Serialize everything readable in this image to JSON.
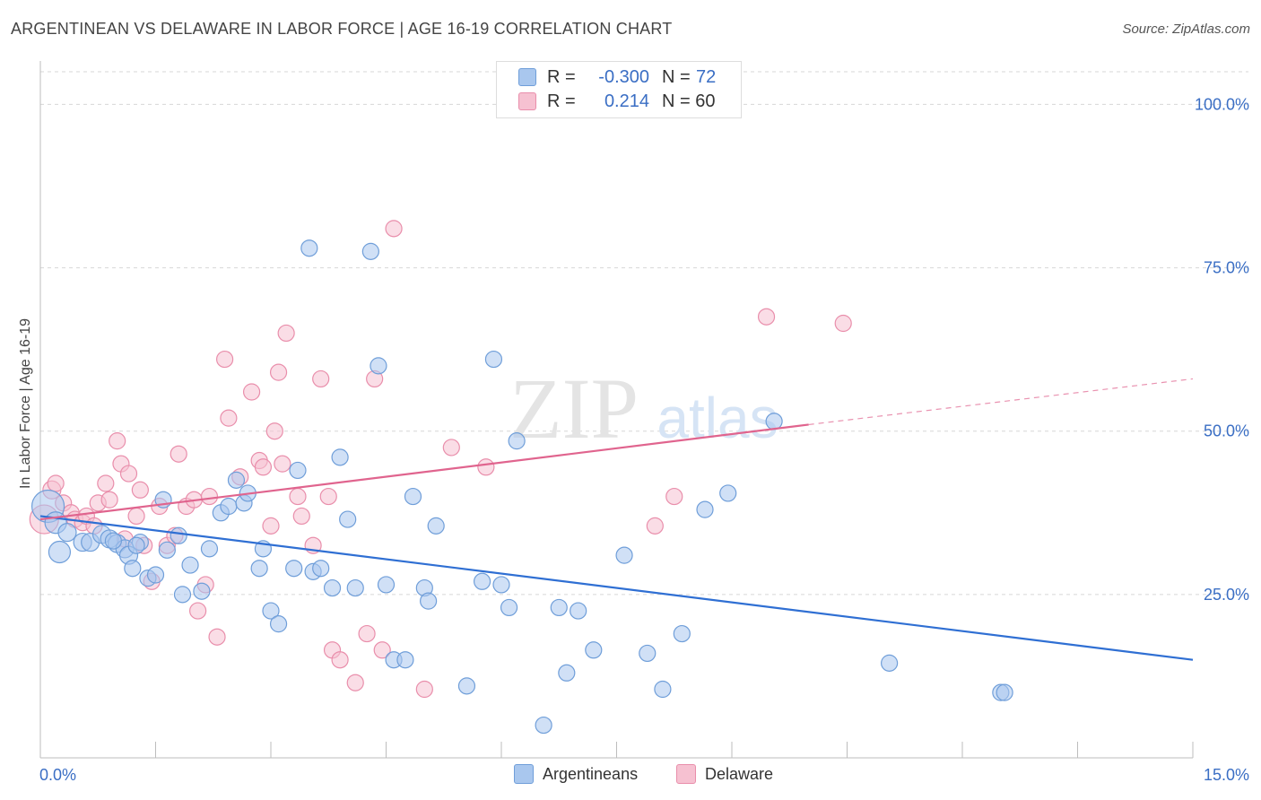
{
  "header": {
    "title": "ARGENTINEAN VS DELAWARE IN LABOR FORCE | AGE 16-19 CORRELATION CHART",
    "source": "Source: ZipAtlas.com"
  },
  "watermark": {
    "zip": "ZIP",
    "atlas": "atlas"
  },
  "legend": {
    "rows": [
      {
        "r_label": "R =",
        "r_value": "-0.300",
        "n_label": "N =",
        "n_value": "72"
      },
      {
        "r_label": "R =",
        "r_value": "0.214",
        "n_label": "N = 60",
        "n_value": ""
      }
    ],
    "bottom": [
      {
        "label": "Argentineans"
      },
      {
        "label": "Delaware"
      }
    ]
  },
  "colors": {
    "blue_fill": "#a9c7ee",
    "blue_stroke": "#6f9ed9",
    "blue_line": "#2f6fd3",
    "pink_fill": "#f6c1d1",
    "pink_stroke": "#e98eab",
    "pink_line": "#e0648e",
    "tick_label": "#3a6ec4",
    "grid": "#d7d7d7"
  },
  "chart_data": {
    "type": "scatter",
    "title": "ARGENTINEAN VS DELAWARE IN LABOR FORCE | AGE 16-19 CORRELATION CHART",
    "xlabel": "",
    "ylabel": "In Labor Force | Age 16-19",
    "xlim": [
      0,
      15
    ],
    "ylim": [
      0,
      105
    ],
    "x_tick_labels": [
      "0.0%",
      "15.0%"
    ],
    "y_ticks": [
      25,
      50,
      75,
      100
    ],
    "y_tick_labels": [
      "25.0%",
      "50.0%",
      "75.0%",
      "100.0%"
    ],
    "grid": true,
    "legend_position": "top-center",
    "series": [
      {
        "name": "Argentineans",
        "r": -0.3,
        "n": 72,
        "trend": {
          "x": [
            0,
            15
          ],
          "y": [
            37.0,
            15.0
          ]
        },
        "points": [
          [
            0.1,
            38.5,
            18
          ],
          [
            0.2,
            36.0,
            12
          ],
          [
            0.25,
            31.5,
            12
          ],
          [
            0.35,
            34.5,
            10
          ],
          [
            0.55,
            33.0,
            10
          ],
          [
            0.65,
            33.0,
            10
          ],
          [
            0.8,
            34.2,
            10
          ],
          [
            0.9,
            33.5,
            10
          ],
          [
            1.0,
            32.8,
            10
          ],
          [
            1.1,
            32.0,
            10
          ],
          [
            1.15,
            31.0,
            10
          ],
          [
            1.2,
            29.0,
            9
          ],
          [
            1.3,
            33.0,
            9
          ],
          [
            1.4,
            27.5,
            9
          ],
          [
            1.5,
            28.0,
            9
          ],
          [
            1.6,
            39.5,
            9
          ],
          [
            1.65,
            31.8,
            9
          ],
          [
            1.8,
            34.0,
            9
          ],
          [
            1.85,
            25.0,
            9
          ],
          [
            1.95,
            29.5,
            9
          ],
          [
            2.1,
            25.5,
            9
          ],
          [
            2.2,
            32.0,
            9
          ],
          [
            2.35,
            37.5,
            9
          ],
          [
            2.45,
            38.5,
            9
          ],
          [
            2.55,
            42.5,
            9
          ],
          [
            2.65,
            39.0,
            9
          ],
          [
            2.7,
            40.5,
            9
          ],
          [
            2.85,
            29.0,
            9
          ],
          [
            2.9,
            32.0,
            9
          ],
          [
            3.0,
            22.5,
            9
          ],
          [
            3.1,
            20.5,
            9
          ],
          [
            3.3,
            29.0,
            9
          ],
          [
            3.35,
            44.0,
            9
          ],
          [
            3.5,
            78.0,
            9
          ],
          [
            3.55,
            28.5,
            9
          ],
          [
            3.65,
            29.0,
            9
          ],
          [
            3.8,
            26.0,
            9
          ],
          [
            3.9,
            46.0,
            9
          ],
          [
            4.0,
            36.5,
            9
          ],
          [
            4.1,
            26.0,
            9
          ],
          [
            4.3,
            77.5,
            9
          ],
          [
            4.4,
            60.0,
            9
          ],
          [
            4.5,
            26.5,
            9
          ],
          [
            4.6,
            15.0,
            9
          ],
          [
            4.75,
            15.0,
            9
          ],
          [
            4.85,
            40.0,
            9
          ],
          [
            5.0,
            26.0,
            9
          ],
          [
            5.05,
            24.0,
            9
          ],
          [
            5.15,
            35.5,
            9
          ],
          [
            5.55,
            11.0,
            9
          ],
          [
            5.75,
            27.0,
            9
          ],
          [
            5.9,
            61.0,
            9
          ],
          [
            6.0,
            26.5,
            9
          ],
          [
            6.1,
            23.0,
            9
          ],
          [
            6.2,
            48.5,
            9
          ],
          [
            6.55,
            5.0,
            9
          ],
          [
            6.75,
            23.0,
            9
          ],
          [
            6.85,
            13.0,
            9
          ],
          [
            7.0,
            22.5,
            9
          ],
          [
            7.2,
            16.5,
            9
          ],
          [
            7.6,
            31.0,
            9
          ],
          [
            7.9,
            16.0,
            9
          ],
          [
            8.1,
            10.5,
            9
          ],
          [
            8.35,
            19.0,
            9
          ],
          [
            8.65,
            38.0,
            9
          ],
          [
            8.95,
            40.5,
            9
          ],
          [
            9.55,
            51.5,
            9
          ],
          [
            11.05,
            14.5,
            9
          ],
          [
            12.5,
            10.0,
            9
          ],
          [
            12.55,
            10.0,
            9
          ],
          [
            1.25,
            32.5,
            9
          ],
          [
            0.95,
            33.2,
            9
          ]
        ]
      },
      {
        "name": "Delaware",
        "r": 0.214,
        "n": 60,
        "trend": {
          "x": [
            0,
            10
          ],
          "y": [
            36.5,
            51.0
          ]
        },
        "trend_dashed": {
          "x": [
            10,
            15
          ],
          "y": [
            51.0,
            58.0
          ]
        },
        "points": [
          [
            0.05,
            36.5,
            16
          ],
          [
            0.15,
            41.0,
            10
          ],
          [
            0.2,
            42.0,
            9
          ],
          [
            0.3,
            39.0,
            9
          ],
          [
            0.4,
            37.5,
            9
          ],
          [
            0.45,
            36.5,
            9
          ],
          [
            0.55,
            36.0,
            9
          ],
          [
            0.6,
            37.0,
            9
          ],
          [
            0.7,
            35.5,
            9
          ],
          [
            0.75,
            39.0,
            9
          ],
          [
            0.85,
            42.0,
            9
          ],
          [
            0.9,
            39.5,
            9
          ],
          [
            1.0,
            48.5,
            9
          ],
          [
            1.05,
            45.0,
            9
          ],
          [
            1.15,
            43.5,
            9
          ],
          [
            1.25,
            37.0,
            9
          ],
          [
            1.3,
            41.0,
            9
          ],
          [
            1.35,
            32.5,
            9
          ],
          [
            1.45,
            27.0,
            9
          ],
          [
            1.55,
            38.5,
            9
          ],
          [
            1.65,
            32.5,
            9
          ],
          [
            1.75,
            34.0,
            9
          ],
          [
            1.8,
            46.5,
            9
          ],
          [
            1.9,
            38.5,
            9
          ],
          [
            2.0,
            39.5,
            9
          ],
          [
            2.05,
            22.5,
            9
          ],
          [
            2.15,
            26.5,
            9
          ],
          [
            2.2,
            40.0,
            9
          ],
          [
            2.3,
            18.5,
            9
          ],
          [
            2.4,
            61.0,
            9
          ],
          [
            2.45,
            52.0,
            9
          ],
          [
            2.6,
            43.0,
            9
          ],
          [
            2.75,
            56.0,
            9
          ],
          [
            2.85,
            45.5,
            9
          ],
          [
            2.9,
            44.5,
            9
          ],
          [
            3.0,
            35.5,
            9
          ],
          [
            3.05,
            50.0,
            9
          ],
          [
            3.1,
            59.0,
            9
          ],
          [
            3.15,
            45.0,
            9
          ],
          [
            3.2,
            65.0,
            9
          ],
          [
            3.35,
            40.0,
            9
          ],
          [
            3.4,
            37.0,
            9
          ],
          [
            3.55,
            32.5,
            9
          ],
          [
            3.65,
            58.0,
            9
          ],
          [
            3.75,
            40.0,
            9
          ],
          [
            3.8,
            16.5,
            9
          ],
          [
            3.9,
            15.0,
            9
          ],
          [
            4.1,
            11.5,
            9
          ],
          [
            4.25,
            19.0,
            9
          ],
          [
            4.35,
            58.0,
            9
          ],
          [
            4.45,
            16.5,
            9
          ],
          [
            4.6,
            81.0,
            9
          ],
          [
            5.0,
            10.5,
            9
          ],
          [
            5.35,
            47.5,
            9
          ],
          [
            5.8,
            44.5,
            9
          ],
          [
            8.0,
            35.5,
            9
          ],
          [
            8.25,
            40.0,
            9
          ],
          [
            9.45,
            67.5,
            9
          ],
          [
            10.45,
            66.5,
            9
          ],
          [
            1.1,
            33.5,
            9
          ]
        ]
      }
    ]
  }
}
